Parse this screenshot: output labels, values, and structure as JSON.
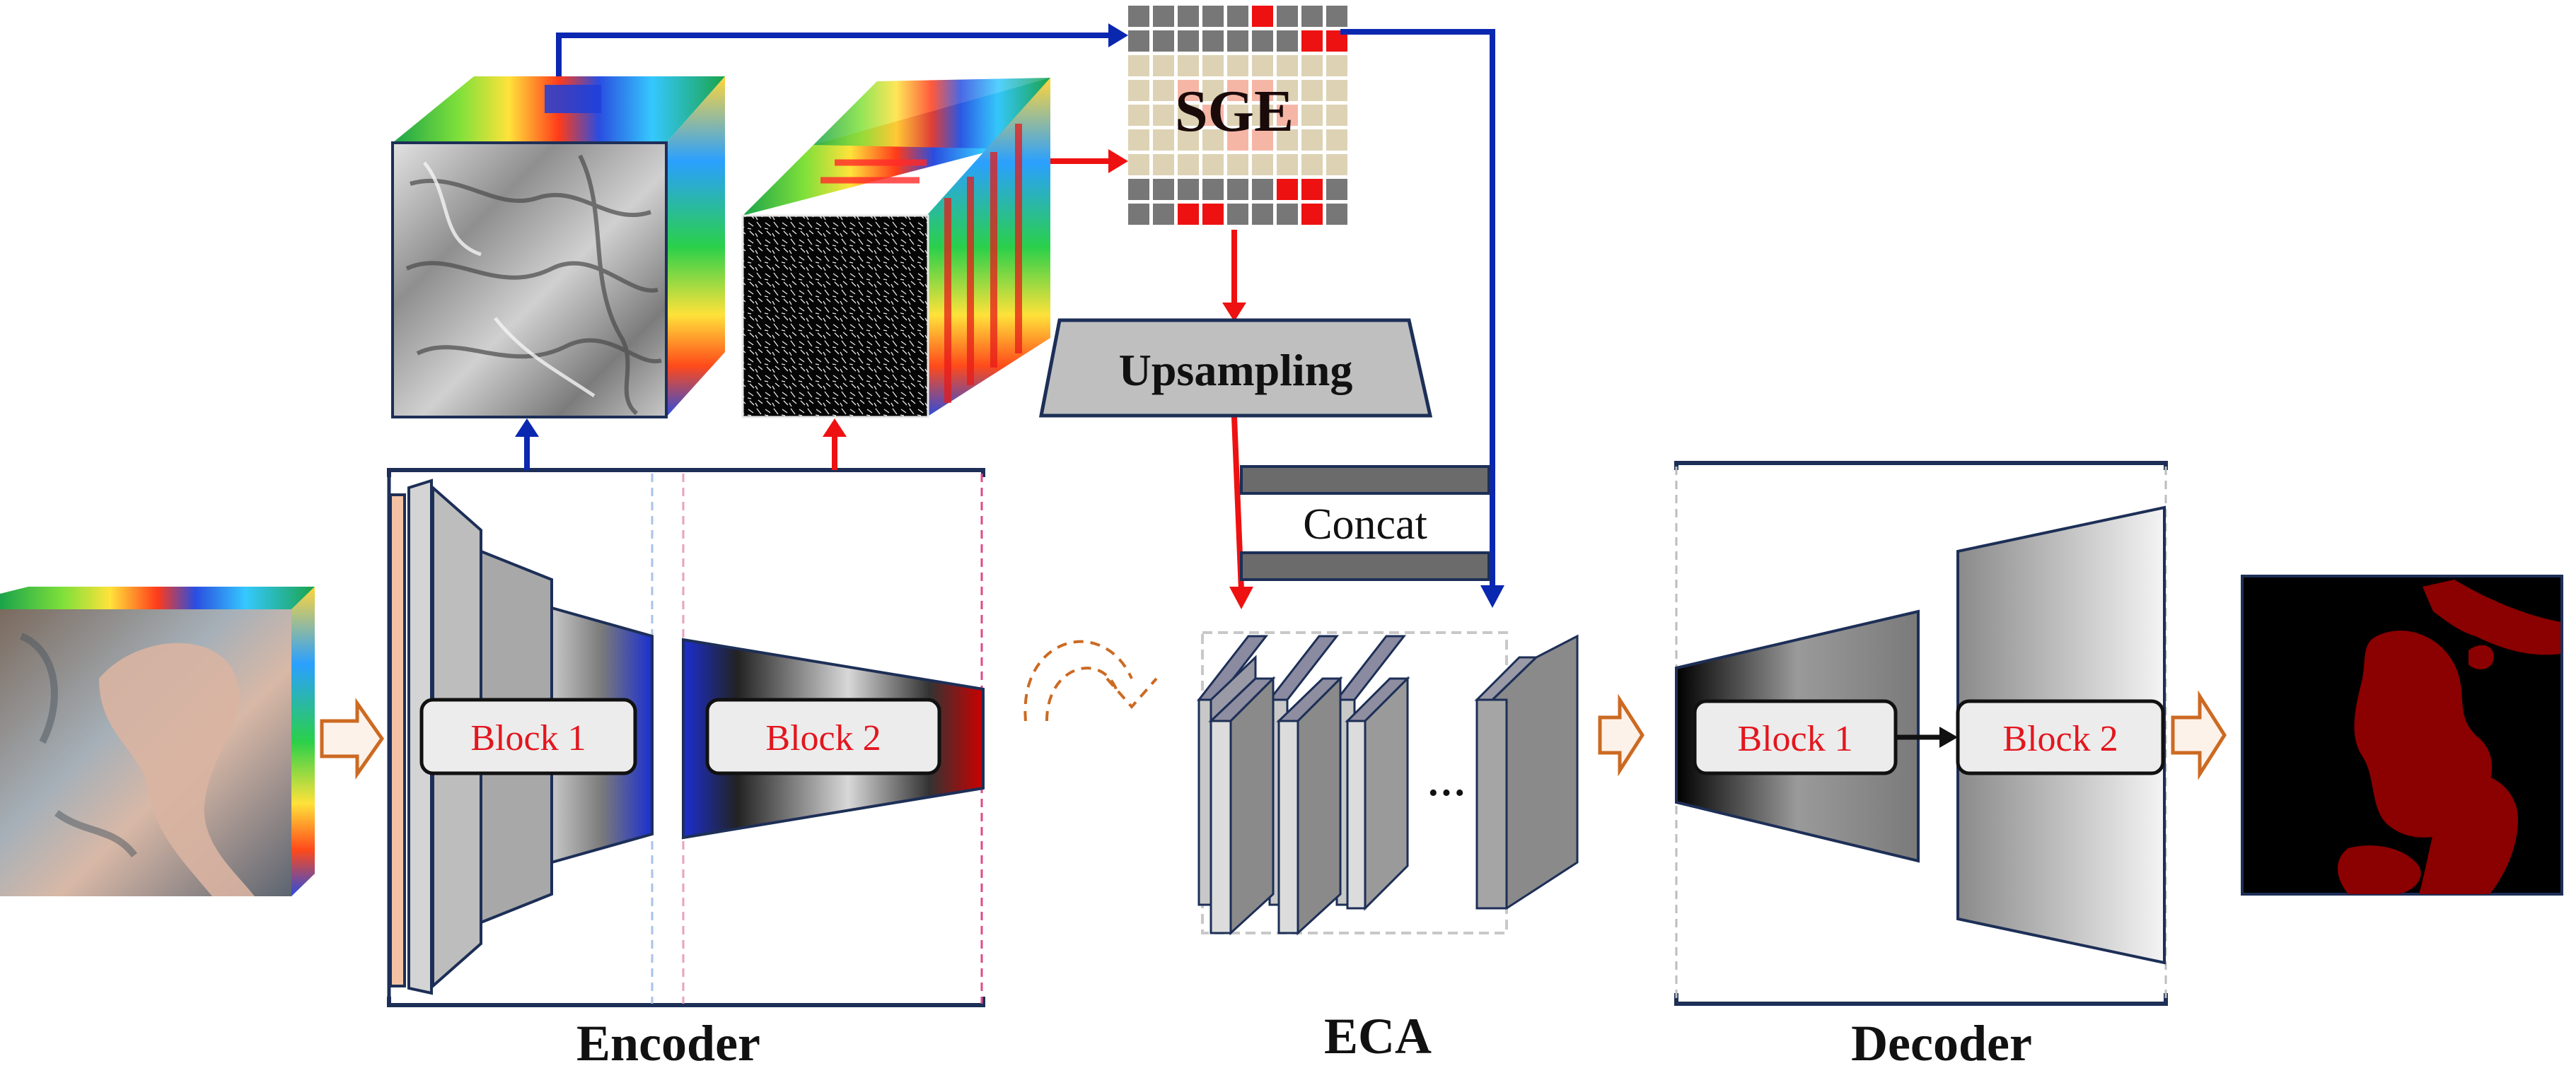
{
  "encoder": {
    "title": "Encoder",
    "block1_label": "Block 1",
    "block2_label": "Block 2"
  },
  "sge": {
    "label": "SGE"
  },
  "upsampling": {
    "label": "Upsampling"
  },
  "concat": {
    "label": "Concat"
  },
  "eca": {
    "title": "ECA",
    "ellipsis": "···"
  },
  "decoder": {
    "title": "Decoder",
    "block1_label": "Block 1",
    "block2_label": "Block 2"
  },
  "colors": {
    "blue_path": "#0a27b0",
    "red_path": "#ee1111",
    "orange_arrow": "#cc6a22",
    "block_label_red": "#e3161e",
    "dark_outline": "#1d2f57",
    "output_target": "#8b0000"
  }
}
